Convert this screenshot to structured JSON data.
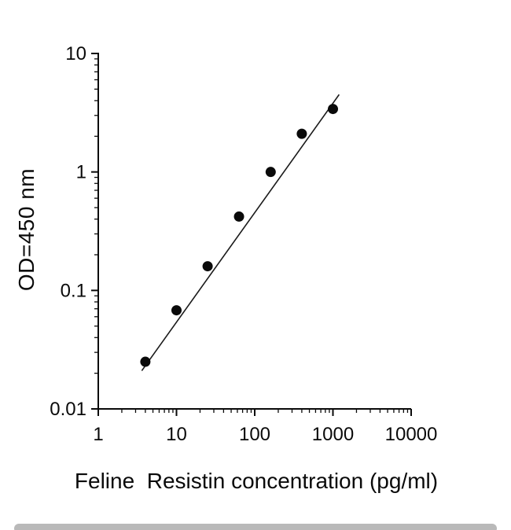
{
  "figure": {
    "background": "#ffffff",
    "axis_color": "#0a0a0a",
    "point_color": "#0a0a0a",
    "line_color": "#1a1a1a"
  },
  "chart_data": {
    "type": "scatter",
    "title": "",
    "xlabel": "Feline  Resistin concentration (pg/ml)",
    "ylabel": "OD=450 nm",
    "x_scale": "log",
    "y_scale": "log",
    "xlim": [
      1,
      10000
    ],
    "ylim": [
      0.01,
      10
    ],
    "grid": false,
    "legend": false,
    "x_ticks": [
      1,
      10,
      100,
      1000,
      10000
    ],
    "x_tick_labels": [
      "1",
      "10",
      "100",
      "1000",
      "10000"
    ],
    "y_ticks": [
      0.01,
      0.1,
      1,
      10
    ],
    "y_tick_labels": [
      "0.01",
      "0.1",
      "1",
      "10"
    ],
    "series": [
      {
        "name": "standard-curve-fit-line",
        "type": "line",
        "color": "#1a1a1a",
        "points": [
          {
            "x": 3.6,
            "y": 0.021
          },
          {
            "x": 1200,
            "y": 4.5
          }
        ]
      },
      {
        "name": "standard-points",
        "type": "scatter",
        "marker": "filled-circle",
        "color": "#0a0a0a",
        "points": [
          {
            "x": 4,
            "y": 0.025
          },
          {
            "x": 10,
            "y": 0.068
          },
          {
            "x": 25,
            "y": 0.16
          },
          {
            "x": 63,
            "y": 0.42
          },
          {
            "x": 160,
            "y": 1.0
          },
          {
            "x": 400,
            "y": 2.1
          },
          {
            "x": 1000,
            "y": 3.4
          }
        ]
      }
    ]
  }
}
